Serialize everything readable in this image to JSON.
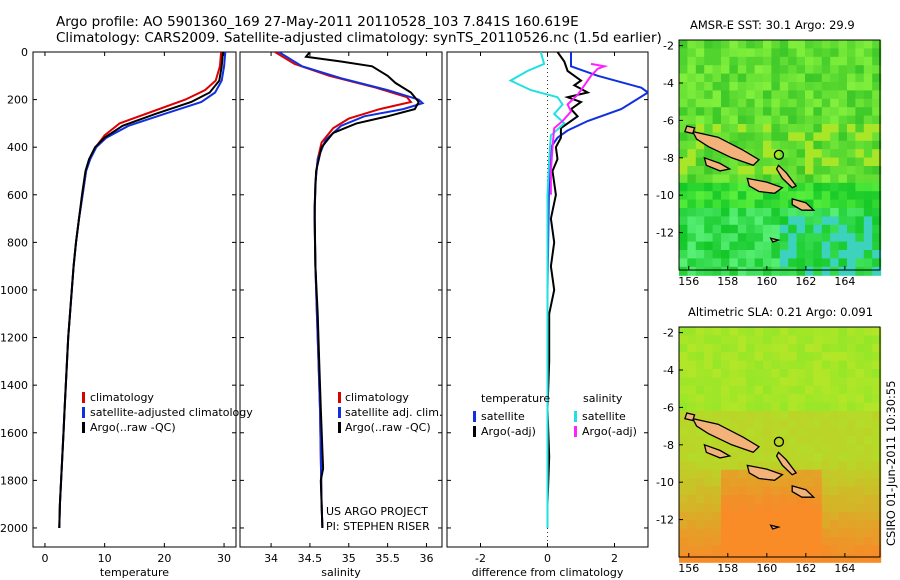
{
  "header": {
    "line1": "Argo profile: AO 5901360_169 27-May-2011 20110528_103 7.841S 160.619E",
    "line2": "Climatology: CARS2009. Satellite-adjusted climatology: synTS_20110526.nc (1.5d earlier)"
  },
  "colors": {
    "climatology": "#dd0000",
    "satellite": "#1030e0",
    "argo": "#000000",
    "sal_sat": "#20e0e0",
    "sal_argo": "#ff20ff",
    "coast": "#000000"
  },
  "chart_data": [
    {
      "type": "line",
      "name": "temperature-panel",
      "xlabel": "temperature",
      "ylabel": "",
      "xlim": [
        -2,
        32
      ],
      "ylim": [
        2080,
        0
      ],
      "xticks": [
        "0",
        "10",
        "20",
        "30"
      ],
      "yticks": [
        "0",
        "200",
        "400",
        "600",
        "800",
        "1000",
        "1200",
        "1400",
        "1600",
        "1800",
        "2000"
      ],
      "legend": [
        "climatology",
        "satellite-adjusted climatology",
        "Argo(..raw -QC)"
      ],
      "series": [
        {
          "name": "climatology",
          "color": "#dd0000",
          "points": [
            [
              29.5,
              0
            ],
            [
              29.3,
              60
            ],
            [
              28.6,
              120
            ],
            [
              26.8,
              160
            ],
            [
              23.5,
              200
            ],
            [
              18,
              250
            ],
            [
              12.5,
              300
            ],
            [
              10,
              350
            ],
            [
              8.5,
              400
            ],
            [
              7.5,
              450
            ],
            [
              6.9,
              500
            ],
            [
              6.3,
              600
            ],
            [
              5.7,
              700
            ],
            [
              5.2,
              800
            ],
            [
              4.8,
              900
            ],
            [
              4.5,
              1000
            ],
            [
              4.2,
              1100
            ],
            [
              3.9,
              1200
            ],
            [
              3.7,
              1300
            ],
            [
              3.5,
              1400
            ],
            [
              3.3,
              1500
            ],
            [
              3.1,
              1600
            ],
            [
              2.9,
              1700
            ],
            [
              2.7,
              1800
            ],
            [
              2.5,
              1900
            ],
            [
              2.4,
              2000
            ]
          ]
        },
        {
          "name": "satellite-adjusted climatology",
          "color": "#1030e0",
          "points": [
            [
              30.2,
              0
            ],
            [
              30,
              60
            ],
            [
              29.6,
              120
            ],
            [
              28.5,
              170
            ],
            [
              26.2,
              210
            ],
            [
              20,
              260
            ],
            [
              14,
              310
            ],
            [
              10.3,
              360
            ],
            [
              8.6,
              400
            ],
            [
              7.6,
              450
            ],
            [
              6.9,
              500
            ],
            [
              6.3,
              600
            ],
            [
              5.7,
              700
            ],
            [
              5.2,
              800
            ],
            [
              4.8,
              900
            ],
            [
              4.5,
              1000
            ],
            [
              4.2,
              1100
            ],
            [
              3.9,
              1200
            ],
            [
              3.7,
              1300
            ],
            [
              3.5,
              1400
            ],
            [
              3.3,
              1500
            ],
            [
              3.1,
              1600
            ],
            [
              2.9,
              1700
            ],
            [
              2.7,
              1800
            ],
            [
              2.5,
              1900
            ],
            [
              2.4,
              2000
            ]
          ]
        },
        {
          "name": "Argo(..raw -QC)",
          "color": "#000000",
          "points": [
            [
              29.8,
              0
            ],
            [
              29.6,
              60
            ],
            [
              29.2,
              120
            ],
            [
              27.6,
              170
            ],
            [
              24.5,
              210
            ],
            [
              18.5,
              260
            ],
            [
              13,
              310
            ],
            [
              10,
              360
            ],
            [
              8.4,
              400
            ],
            [
              7.4,
              450
            ],
            [
              6.8,
              500
            ],
            [
              6.2,
              600
            ],
            [
              5.7,
              700
            ],
            [
              5.2,
              800
            ],
            [
              4.8,
              900
            ],
            [
              4.5,
              1000
            ],
            [
              4.2,
              1100
            ],
            [
              3.9,
              1200
            ],
            [
              3.7,
              1300
            ],
            [
              3.5,
              1400
            ],
            [
              3.3,
              1500
            ],
            [
              3.1,
              1600
            ],
            [
              2.9,
              1700
            ],
            [
              2.7,
              1800
            ],
            [
              2.5,
              1900
            ],
            [
              2.4,
              2000
            ]
          ]
        }
      ]
    },
    {
      "type": "line",
      "name": "salinity-panel",
      "xlabel": "salinity",
      "ylabel": "",
      "xlim": [
        33.6,
        36.2
      ],
      "ylim": [
        2080,
        0
      ],
      "xticks": [
        "34",
        "34.5",
        "35",
        "35.5",
        "36"
      ],
      "legend": [
        "climatology",
        "satellite adj. clim.",
        "Argo(..raw -QC)"
      ],
      "annotation": [
        "US ARGO PROJECT",
        "PI: STEPHEN RISER"
      ],
      "series": [
        {
          "name": "climatology",
          "color": "#dd0000",
          "points": [
            [
              34.05,
              0
            ],
            [
              34.3,
              50
            ],
            [
              34.75,
              100
            ],
            [
              35.35,
              150
            ],
            [
              35.75,
              190
            ],
            [
              35.8,
              210
            ],
            [
              35.4,
              240
            ],
            [
              35.0,
              280
            ],
            [
              34.8,
              320
            ],
            [
              34.65,
              380
            ],
            [
              34.6,
              450
            ],
            [
              34.57,
              550
            ],
            [
              34.56,
              700
            ],
            [
              34.57,
              900
            ],
            [
              34.59,
              1100
            ],
            [
              34.61,
              1300
            ],
            [
              34.63,
              1500
            ],
            [
              34.64,
              1700
            ],
            [
              34.65,
              1900
            ],
            [
              34.66,
              2000
            ]
          ]
        },
        {
          "name": "satellite adj. clim.",
          "color": "#1030e0",
          "points": [
            [
              34.1,
              0
            ],
            [
              34.4,
              60
            ],
            [
              34.9,
              110
            ],
            [
              35.5,
              160
            ],
            [
              35.9,
              200
            ],
            [
              35.95,
              215
            ],
            [
              35.7,
              240
            ],
            [
              35.2,
              270
            ],
            [
              34.9,
              310
            ],
            [
              34.7,
              370
            ],
            [
              34.6,
              450
            ],
            [
              34.57,
              550
            ],
            [
              34.56,
              700
            ],
            [
              34.57,
              900
            ],
            [
              34.59,
              1100
            ],
            [
              34.61,
              1300
            ],
            [
              34.63,
              1500
            ],
            [
              34.64,
              1700
            ],
            [
              34.65,
              1900
            ],
            [
              34.66,
              2000
            ]
          ]
        },
        {
          "name": "Argo(..raw -QC)",
          "color": "#000000",
          "points": [
            [
              34.5,
              0
            ],
            [
              34.45,
              20
            ],
            [
              34.9,
              40
            ],
            [
              35.3,
              60
            ],
            [
              35.5,
              100
            ],
            [
              35.6,
              130
            ],
            [
              35.8,
              170
            ],
            [
              35.9,
              210
            ],
            [
              35.85,
              240
            ],
            [
              35.5,
              270
            ],
            [
              35.1,
              300
            ],
            [
              34.8,
              340
            ],
            [
              34.65,
              400
            ],
            [
              34.58,
              500
            ],
            [
              34.56,
              650
            ],
            [
              34.57,
              900
            ],
            [
              34.6,
              1100
            ],
            [
              34.62,
              1300
            ],
            [
              34.64,
              1500
            ],
            [
              34.67,
              1750
            ],
            [
              34.64,
              1800
            ],
            [
              34.65,
              1900
            ],
            [
              34.66,
              2000
            ]
          ]
        }
      ]
    },
    {
      "type": "line",
      "name": "difference-panel",
      "xlabel": "difference from climatology",
      "ylabel": "",
      "xlim": [
        -3,
        3
      ],
      "ylim": [
        2080,
        0
      ],
      "xticks": [
        "-2",
        "0",
        "2"
      ],
      "legend_headers": [
        "temperature",
        "salinity"
      ],
      "legend": [
        "satellite",
        "Argo(-adj)",
        "satellite",
        "Argo(-adj)"
      ],
      "series": [
        {
          "name": "temperature satellite",
          "color": "#1030e0",
          "points": [
            [
              0.7,
              0
            ],
            [
              0.7,
              60
            ],
            [
              1.5,
              100
            ],
            [
              2.8,
              150
            ],
            [
              3,
              170
            ],
            [
              2.2,
              240
            ],
            [
              1.2,
              290
            ],
            [
              0.6,
              330
            ],
            [
              0.3,
              360
            ],
            [
              0.1,
              400
            ],
            [
              0.05,
              500
            ],
            [
              0,
              1000
            ],
            [
              0,
              1500
            ],
            [
              0,
              2000
            ]
          ]
        },
        {
          "name": "temperature Argo(-adj)",
          "color": "#000000",
          "points": [
            [
              0.3,
              0
            ],
            [
              0.5,
              40
            ],
            [
              0.6,
              80
            ],
            [
              1.0,
              120
            ],
            [
              0.8,
              140
            ],
            [
              1.2,
              170
            ],
            [
              0.6,
              190
            ],
            [
              1.0,
              210
            ],
            [
              0.7,
              240
            ],
            [
              0.9,
              270
            ],
            [
              0.4,
              320
            ],
            [
              0.4,
              360
            ],
            [
              0.25,
              400
            ],
            [
              0.3,
              450
            ],
            [
              0.15,
              500
            ],
            [
              0.25,
              600
            ],
            [
              0.1,
              700
            ],
            [
              0.2,
              800
            ],
            [
              0.1,
              900
            ],
            [
              0.2,
              1000
            ],
            [
              0.05,
              1100
            ],
            [
              0.05,
              1300
            ],
            [
              0,
              1500
            ],
            [
              0.05,
              1700
            ],
            [
              0,
              1900
            ],
            [
              0,
              2000
            ]
          ]
        },
        {
          "name": "salinity satellite",
          "color": "#20e0e0",
          "points": [
            [
              -0.2,
              0
            ],
            [
              -0.1,
              50
            ],
            [
              -0.6,
              80
            ],
            [
              -1.1,
              120
            ],
            [
              -0.5,
              160
            ],
            [
              0.3,
              190
            ],
            [
              0.45,
              220
            ],
            [
              0.2,
              260
            ],
            [
              0.5,
              300
            ],
            [
              0.1,
              350
            ],
            [
              0.05,
              450
            ],
            [
              0,
              600
            ],
            [
              0,
              1000
            ],
            [
              0,
              1500
            ],
            [
              0,
              2000
            ]
          ]
        },
        {
          "name": "salinity Argo(-adj)",
          "color": "#ff20ff",
          "points": [
            [
              1.3,
              50
            ],
            [
              1.7,
              60
            ],
            [
              1.5,
              70
            ],
            [
              1.3,
              100
            ],
            [
              1.1,
              140
            ],
            [
              0.9,
              180
            ],
            [
              0.6,
              220
            ],
            [
              0.7,
              250
            ],
            [
              0.45,
              290
            ],
            [
              0.2,
              320
            ],
            [
              0.15,
              400
            ],
            [
              0.1,
              500
            ],
            [
              0.1,
              600
            ]
          ]
        }
      ]
    },
    {
      "type": "heatmap",
      "name": "sst-map",
      "title": "AMSR-E SST: 30.1 Argo: 29.9",
      "xlim": [
        155.5,
        165.8
      ],
      "ylim": [
        -14,
        -1.7
      ],
      "xticks": [
        "156",
        "158",
        "160",
        "162",
        "164"
      ],
      "yticks": [
        "-2",
        "-4",
        "-6",
        "-8",
        "-10",
        "-12"
      ],
      "float_position": [
        160.62,
        -7.84
      ]
    },
    {
      "type": "heatmap",
      "name": "sla-map",
      "title": "Altimetric SLA: 0.21 Argo: 0.091",
      "xlim": [
        155.5,
        165.8
      ],
      "ylim": [
        -14,
        -1.7
      ],
      "xticks": [
        "156",
        "158",
        "160",
        "162",
        "164"
      ],
      "yticks": [
        "-2",
        "-4",
        "-6",
        "-8",
        "-10",
        "-12"
      ],
      "float_position": [
        160.62,
        -7.84
      ]
    }
  ],
  "footer": {
    "credit": "CSIRO 01-Jun-2011 10:30:55"
  }
}
